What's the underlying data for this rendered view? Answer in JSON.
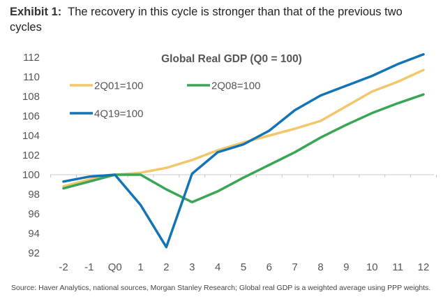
{
  "exhibit": {
    "label": "Exhibit 1:",
    "text": "The recovery in this cycle is stronger than that of the previous two cycles"
  },
  "source": "Source: Haver Analytics, national sources, Morgan Stanley Research; Global real GDP is a weighted average using PPP weights.",
  "chart_data": {
    "type": "line",
    "title": "Global Real GDP (Q0 = 100)",
    "xlabel": "",
    "ylabel": "",
    "x": [
      "-2",
      "-1",
      "Q0",
      "1",
      "2",
      "3",
      "4",
      "5",
      "6",
      "7",
      "8",
      "9",
      "10",
      "11",
      "12"
    ],
    "ylim": [
      92,
      112
    ],
    "yticks": [
      92,
      94,
      96,
      98,
      100,
      102,
      104,
      106,
      108,
      110,
      112
    ],
    "grid": false,
    "baseline": 100,
    "legend_position": "top-left",
    "series": [
      {
        "name": "2Q01=100",
        "color": "#f2c76b",
        "values": [
          98.8,
          99.5,
          100.0,
          100.2,
          100.7,
          101.5,
          102.5,
          103.3,
          104.0,
          104.7,
          105.5,
          107.0,
          108.5,
          109.5,
          110.7
        ]
      },
      {
        "name": "2Q08=100",
        "color": "#3aa655",
        "values": [
          98.6,
          99.3,
          100.0,
          100.0,
          98.5,
          97.2,
          98.3,
          99.7,
          101.0,
          102.3,
          103.8,
          105.1,
          106.3,
          107.3,
          108.2
        ]
      },
      {
        "name": "4Q19=100",
        "color": "#1374b5",
        "values": [
          99.3,
          99.8,
          100.0,
          96.9,
          92.6,
          100.1,
          102.3,
          103.1,
          104.5,
          106.6,
          108.1,
          109.1,
          110.1,
          111.3,
          112.3
        ]
      }
    ]
  }
}
